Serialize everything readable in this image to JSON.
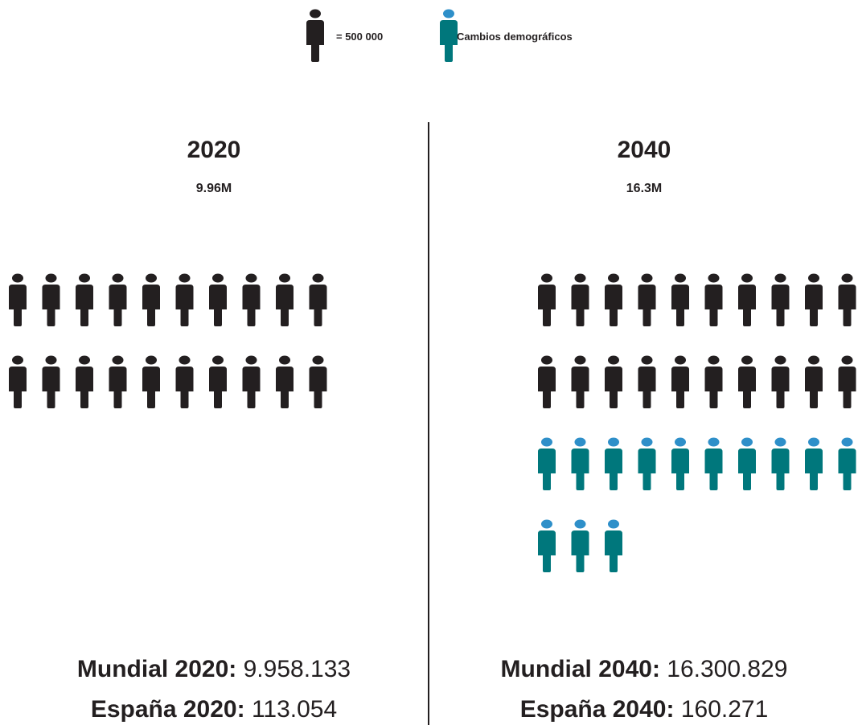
{
  "legend": {
    "unit_label": "= 500 000",
    "change_label": "Cambios demográficos"
  },
  "colors": {
    "base": "#231f20",
    "change_body": "#00777c",
    "change_head": "#2e8fc9",
    "divider": "#231f20"
  },
  "icons": {
    "person": "person-icon"
  },
  "chart_data": {
    "type": "pictogram",
    "unit_value": 500000,
    "unit_label": "= 500 000",
    "panels": [
      {
        "year": "2020",
        "total_label": "9.96M",
        "base_icons": 20,
        "change_icons": 0,
        "stats": [
          {
            "label": "Mundial 2020:",
            "value": "9.958.133"
          },
          {
            "label": "España 2020:",
            "value": "113.054"
          }
        ]
      },
      {
        "year": "2040",
        "total_label": "16.3M",
        "base_icons": 20,
        "change_icons": 13,
        "stats": [
          {
            "label": "Mundial 2040:",
            "value": "16.300.829"
          },
          {
            "label": "España 2040:",
            "value": "160.271"
          }
        ]
      }
    ]
  }
}
